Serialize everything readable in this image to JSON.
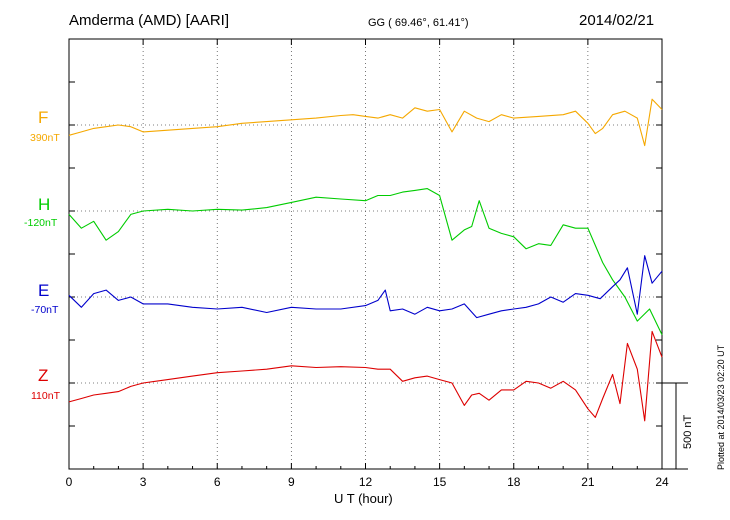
{
  "header": {
    "station": "Amderma (AMD)  [AARI]",
    "coords": "GG ( 69.46°,  61.41°)",
    "date": "2014/02/21"
  },
  "plotted_at": "Plotted at 2014/03/23 02:20 UT",
  "scale_label": "500 nT",
  "chart_data": {
    "type": "line",
    "xlabel": "U T (hour)",
    "xlim": [
      0,
      24
    ],
    "x_ticks": [
      0,
      3,
      6,
      9,
      12,
      15,
      18,
      21,
      24
    ],
    "x_tick_labels": [
      "0",
      "3",
      "6",
      "9",
      "12",
      "15",
      "18",
      "21",
      "24"
    ],
    "scale_bar_nT": 500,
    "grid": "dotted",
    "series": [
      {
        "name": "F",
        "baseline_label": "390nT",
        "color": "#f5a800",
        "x": [
          0,
          0.5,
          1,
          1.5,
          2,
          2.5,
          3,
          4,
          5,
          6,
          7,
          8,
          9,
          10,
          11,
          11.5,
          12,
          12.5,
          13,
          13.5,
          14,
          14.5,
          15,
          15.5,
          16,
          16.5,
          17,
          17.5,
          18,
          19,
          20,
          20.5,
          21,
          21.3,
          21.6,
          22,
          22.5,
          23,
          23.3,
          23.6,
          24
        ],
        "y": [
          -60,
          -40,
          -20,
          -10,
          0,
          -10,
          -40,
          -30,
          -20,
          -10,
          10,
          20,
          30,
          40,
          55,
          60,
          50,
          40,
          60,
          40,
          100,
          80,
          90,
          -40,
          80,
          40,
          20,
          60,
          40,
          50,
          60,
          80,
          10,
          -50,
          -20,
          60,
          80,
          40,
          -120,
          150,
          90
        ]
      },
      {
        "name": "H",
        "baseline_label": "-120nT",
        "color": "#00cc00",
        "x": [
          0,
          0.5,
          1,
          1.5,
          2,
          2.3,
          2.5,
          3,
          4,
          5,
          6,
          7,
          8,
          9,
          10,
          11,
          12,
          12.5,
          13,
          13.5,
          14,
          14.5,
          15,
          15.5,
          16,
          16.3,
          16.6,
          17,
          17.5,
          18,
          18.5,
          19,
          19.5,
          20,
          20.5,
          21,
          21.3,
          21.6,
          22,
          22.5,
          23,
          23.5,
          24
        ],
        "y": [
          -20,
          -100,
          -60,
          -170,
          -120,
          -60,
          -20,
          0,
          10,
          0,
          10,
          5,
          20,
          50,
          80,
          70,
          60,
          90,
          90,
          110,
          120,
          130,
          90,
          -170,
          -110,
          -90,
          60,
          -100,
          -130,
          -150,
          -220,
          -190,
          -200,
          -80,
          -100,
          -100,
          -200,
          -300,
          -400,
          -500,
          -640,
          -570,
          -720
        ]
      },
      {
        "name": "E",
        "baseline_label": "-70nT",
        "color": "#0000cc",
        "x": [
          0,
          0.5,
          1,
          1.5,
          2,
          2.5,
          3,
          4,
          5,
          6,
          7,
          8,
          9,
          10,
          11,
          12,
          12.5,
          12.8,
          13,
          13.5,
          14,
          14.5,
          15,
          15.5,
          16,
          16.5,
          17,
          17.5,
          18,
          18.5,
          19,
          19.5,
          20,
          20.5,
          21,
          21.5,
          22,
          22.3,
          22.6,
          23,
          23.3,
          23.6,
          24
        ],
        "y": [
          10,
          -60,
          20,
          40,
          -20,
          0,
          -40,
          -40,
          -60,
          -70,
          -60,
          -90,
          -60,
          -70,
          -70,
          -50,
          -20,
          40,
          -80,
          -70,
          -100,
          -60,
          -80,
          -70,
          -40,
          -120,
          -100,
          -80,
          -70,
          -60,
          -40,
          0,
          -30,
          20,
          10,
          -10,
          60,
          100,
          170,
          -100,
          240,
          80,
          150
        ]
      },
      {
        "name": "Z",
        "baseline_label": "110nT",
        "color": "#dd0000",
        "x": [
          0,
          0.5,
          1,
          1.5,
          2,
          2.5,
          3,
          4,
          5,
          6,
          7,
          8,
          9,
          10,
          11,
          12,
          12.5,
          13,
          13.5,
          14,
          14.5,
          15,
          15.5,
          16,
          16.3,
          16.6,
          17,
          17.5,
          18,
          18.5,
          19,
          19.5,
          20,
          20.5,
          21,
          21.3,
          21.6,
          22,
          22.3,
          22.6,
          23,
          23.3,
          23.6,
          24
        ],
        "y": [
          -110,
          -90,
          -70,
          -60,
          -50,
          -20,
          0,
          20,
          40,
          60,
          70,
          80,
          100,
          90,
          95,
          90,
          80,
          80,
          10,
          30,
          40,
          20,
          0,
          -130,
          -70,
          -60,
          -100,
          -40,
          -40,
          10,
          0,
          -30,
          10,
          -40,
          -150,
          -200,
          -90,
          50,
          -120,
          230,
          80,
          -220,
          300,
          150
        ]
      }
    ]
  }
}
